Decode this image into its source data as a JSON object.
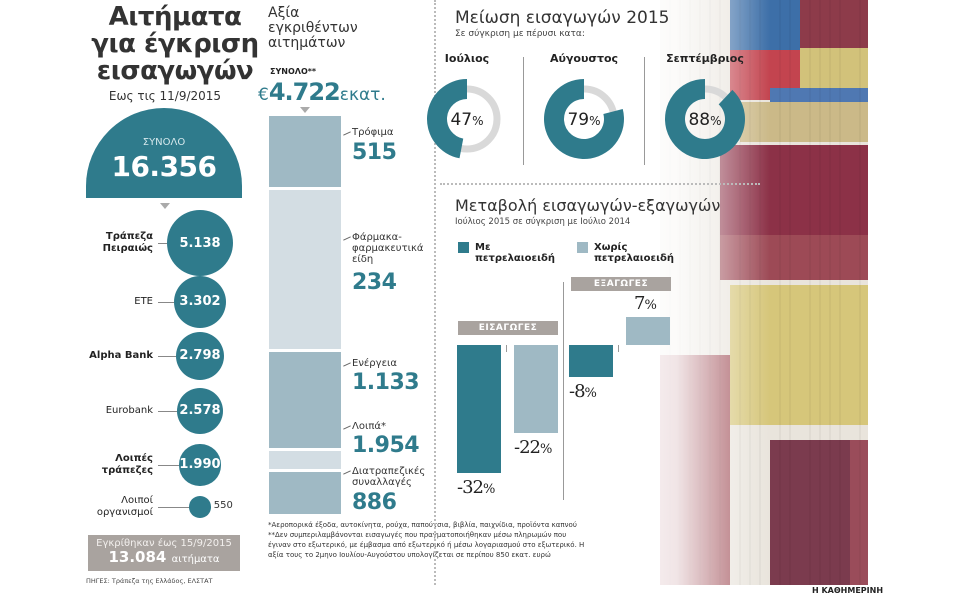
{
  "colors": {
    "teal": "#2f7b8c",
    "light_blue": "#9fb9c4",
    "pale_blue": "#d3dde3",
    "grey_band": "#a9a39f",
    "donut_track": "#d9d9d9"
  },
  "left": {
    "title_line1": "Αιτήματα",
    "title_line2": "για έγκριση",
    "title_line3": "εισαγωγών",
    "subtitle": "Εως τις 11/9/2015",
    "total_label": "ΣΥΝΟΛΟ",
    "total_value": "16.356",
    "banks": [
      {
        "label": "Τράπεζα Πειραιώς",
        "value": 5138,
        "display": "5.138",
        "bold": true
      },
      {
        "label": "ΕΤΕ",
        "value": 3302,
        "display": "3.302",
        "bold": false
      },
      {
        "label": "Alpha Bank",
        "value": 2798,
        "display": "2.798",
        "bold": true
      },
      {
        "label": "Eurobank",
        "value": 2578,
        "display": "2.578",
        "bold": false
      },
      {
        "label": "Λοιπές τράπεζες",
        "value": 1990,
        "display": "1.990",
        "bold": true
      },
      {
        "label": "Λοιποί οργανισμοί",
        "value": 550,
        "display": "550",
        "bold": false
      }
    ],
    "approved_line1": "Εγκρίθηκαν έως 15/9/2015",
    "approved_value": "13.084",
    "approved_unit": "αιτήματα",
    "sources": "ΠΗΓΕΣ: Τράπεζα της Ελλάδος, ΕΛΣΤΑΤ"
  },
  "middle": {
    "title_line1": "Αξία",
    "title_line2": "εγκριθέντων",
    "title_line3": "αιτημάτων",
    "total_label": "ΣΥΝΟΛΟ**",
    "total_currency": "€",
    "total_value": "4.722",
    "total_unit": "εκατ.",
    "footnote1": "*Αεροπορικά έξοδα, αυτοκίνητα, ρούχα, παπούτσια, βιβλία, παιχνίδια, προϊόντα καπνού",
    "footnote2": "**Δεν συμπεριλαμβάνονται εισαγωγές που πραγματοποιήθηκαν μέσω πληρωμών που έγιναν στο εξωτερικό, με έμβασμα από εξωτερικό ή μέσω λογαριασμού στο εξωτερικό. Η αξία τους το 2μηνο Ιουλίου-Αυγούστου υπολογίζεται σε περίπου 850 εκατ. ευρώ"
  },
  "donuts": {
    "title": "Μείωση εισαγωγών 2015",
    "subtitle": "Σε σύγκριση με πέρυσι κατα:"
  },
  "import_export": {
    "title": "Μεταβολή εισαγωγών-εξαγωγών",
    "subtitle": "Ιούλιος 2015 σε σύγκριση με Ιούλιο 2014",
    "legend_with_line1": "Με",
    "legend_with_line2": "πετρελαιοειδή",
    "legend_without_line1": "Χωρίς",
    "legend_without_line2": "πετρελαιοειδή",
    "imports_label": "ΕΙΣΑΓΩΓΕΣ",
    "exports_label": "ΕΞΑΓΩΓΕΣ"
  },
  "publisher": "Η ΚΑΘΗΜΕΡΙΝΗ",
  "chart_data": [
    {
      "type": "bar",
      "title": "Αιτήματα για έγκριση εισαγωγών (Εως τις 11/9/2015)",
      "categories": [
        "Τράπεζα Πειραιώς",
        "ΕΤΕ",
        "Alpha Bank",
        "Eurobank",
        "Λοιπές τράπεζες",
        "Λοιποί οργανισμοί"
      ],
      "values": [
        5138,
        3302,
        2798,
        2578,
        1990,
        550
      ],
      "total": 16356,
      "note": "proportional circles"
    },
    {
      "type": "bar",
      "title": "Αξία εγκριθέντων αιτημάτων (εκατ. €)",
      "categories": [
        "Τρόφιμα",
        "Φάρμακα-φαρμακευτικά είδη",
        "Ενέργεια",
        "Λοιπά*",
        "Διατραπεζικές συναλλαγές"
      ],
      "values": [
        515,
        234,
        1133,
        1954,
        886
      ],
      "display": [
        "515",
        "234",
        "1.133",
        "1.954",
        "886"
      ],
      "total": 4722,
      "note": "stacked single bar"
    },
    {
      "type": "pie",
      "title": "Μείωση εισαγωγών 2015",
      "subtitle": "Σε σύγκριση με πέρυσι κατα:",
      "categories": [
        "Ιούλιος",
        "Αύγουστος",
        "Σεπτέμβριος"
      ],
      "values": [
        47,
        79,
        88
      ],
      "unit": "%"
    },
    {
      "type": "bar",
      "title": "Μεταβολή εισαγωγών-εξαγωγών",
      "subtitle": "Ιούλιος 2015 σε σύγκριση με Ιούλιο 2014",
      "categories": [
        "ΕΙΣΑΓΩΓΕΣ",
        "ΕΞΑΓΩΓΕΣ"
      ],
      "series": [
        {
          "name": "Με πετρελαιοειδή",
          "values": [
            -32,
            -8
          ]
        },
        {
          "name": "Χωρίς πετρελαιοειδή",
          "values": [
            -22,
            7
          ]
        }
      ],
      "unit": "%"
    }
  ]
}
